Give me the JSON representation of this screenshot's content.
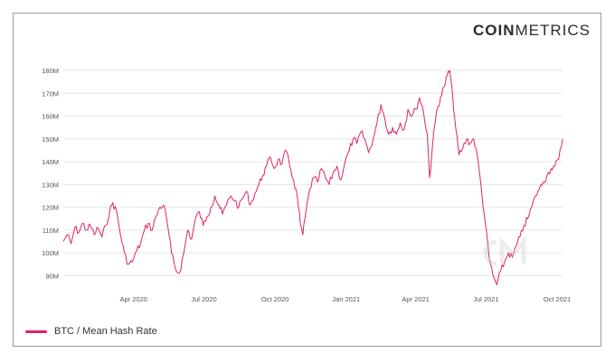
{
  "logo": {
    "bold": "COIN",
    "light": "METRICS"
  },
  "colors": {
    "series": "#e0245e",
    "grid": "#e6e6e6",
    "axis_text": "#555555"
  },
  "chart_data": {
    "type": "line",
    "title": "",
    "xlabel": "",
    "ylabel": "",
    "x_range": [
      "2020-01-01",
      "2021-10-08"
    ],
    "ylim": [
      85000000,
      182000000
    ],
    "grid": "horizontal",
    "legend_position": "bottom-left",
    "y_ticks": [
      {
        "value": 90000000,
        "label": "90M"
      },
      {
        "value": 100000000,
        "label": "100M"
      },
      {
        "value": 110000000,
        "label": "110M"
      },
      {
        "value": 120000000,
        "label": "120M"
      },
      {
        "value": 130000000,
        "label": "130M"
      },
      {
        "value": 140000000,
        "label": "140M"
      },
      {
        "value": 150000000,
        "label": "150M"
      },
      {
        "value": 160000000,
        "label": "160M"
      },
      {
        "value": 170000000,
        "label": "170M"
      },
      {
        "value": 180000000,
        "label": "180M"
      }
    ],
    "x_ticks": [
      {
        "date": "2020-04-01",
        "label": "Apr 2020"
      },
      {
        "date": "2020-07-01",
        "label": "Jul 2020"
      },
      {
        "date": "2020-10-01",
        "label": "Oct 2020"
      },
      {
        "date": "2021-01-01",
        "label": "Jan 2021"
      },
      {
        "date": "2021-04-01",
        "label": "Apr 2021"
      },
      {
        "date": "2021-07-01",
        "label": "Jul 2021"
      },
      {
        "date": "2021-10-01",
        "label": "Oct 2021"
      }
    ],
    "series": [
      {
        "name": "BTC / Mean Hash Rate",
        "points": [
          [
            "2020-01-01",
            105
          ],
          [
            "2020-01-06",
            108
          ],
          [
            "2020-01-11",
            104
          ],
          [
            "2020-01-16",
            111
          ],
          [
            "2020-01-21",
            109
          ],
          [
            "2020-01-26",
            113
          ],
          [
            "2020-01-31",
            110
          ],
          [
            "2020-02-05",
            112
          ],
          [
            "2020-02-10",
            108
          ],
          [
            "2020-02-15",
            111
          ],
          [
            "2020-02-20",
            107
          ],
          [
            "2020-02-25",
            112
          ],
          [
            "2020-03-01",
            118
          ],
          [
            "2020-03-05",
            122
          ],
          [
            "2020-03-10",
            118
          ],
          [
            "2020-03-15",
            108
          ],
          [
            "2020-03-20",
            100
          ],
          [
            "2020-03-25",
            95
          ],
          [
            "2020-03-30",
            96
          ],
          [
            "2020-04-05",
            101
          ],
          [
            "2020-04-10",
            104
          ],
          [
            "2020-04-15",
            110
          ],
          [
            "2020-04-20",
            113
          ],
          [
            "2020-04-25",
            110
          ],
          [
            "2020-04-30",
            116
          ],
          [
            "2020-05-05",
            120
          ],
          [
            "2020-05-10",
            121
          ],
          [
            "2020-05-15",
            112
          ],
          [
            "2020-05-20",
            100
          ],
          [
            "2020-05-25",
            93
          ],
          [
            "2020-05-30",
            91
          ],
          [
            "2020-06-05",
            100
          ],
          [
            "2020-06-10",
            110
          ],
          [
            "2020-06-15",
            106
          ],
          [
            "2020-06-20",
            115
          ],
          [
            "2020-06-25",
            118
          ],
          [
            "2020-06-30",
            112
          ],
          [
            "2020-07-05",
            116
          ],
          [
            "2020-07-10",
            120
          ],
          [
            "2020-07-15",
            125
          ],
          [
            "2020-07-20",
            121
          ],
          [
            "2020-07-25",
            117
          ],
          [
            "2020-07-30",
            121
          ],
          [
            "2020-08-05",
            125
          ],
          [
            "2020-08-10",
            123
          ],
          [
            "2020-08-15",
            120
          ],
          [
            "2020-08-20",
            124
          ],
          [
            "2020-08-25",
            127
          ],
          [
            "2020-08-30",
            121
          ],
          [
            "2020-09-05",
            126
          ],
          [
            "2020-09-10",
            130
          ],
          [
            "2020-09-15",
            134
          ],
          [
            "2020-09-20",
            138
          ],
          [
            "2020-09-25",
            142
          ],
          [
            "2020-09-30",
            137
          ],
          [
            "2020-10-05",
            141
          ],
          [
            "2020-10-10",
            139
          ],
          [
            "2020-10-15",
            145
          ],
          [
            "2020-10-20",
            138
          ],
          [
            "2020-10-25",
            132
          ],
          [
            "2020-10-30",
            124
          ],
          [
            "2020-11-03",
            112
          ],
          [
            "2020-11-06",
            108
          ],
          [
            "2020-11-10",
            118
          ],
          [
            "2020-11-15",
            128
          ],
          [
            "2020-11-20",
            133
          ],
          [
            "2020-11-25",
            131
          ],
          [
            "2020-11-30",
            137
          ],
          [
            "2020-12-05",
            133
          ],
          [
            "2020-12-10",
            130
          ],
          [
            "2020-12-15",
            135
          ],
          [
            "2020-12-20",
            138
          ],
          [
            "2020-12-25",
            132
          ],
          [
            "2020-12-30",
            139
          ],
          [
            "2021-01-05",
            145
          ],
          [
            "2021-01-10",
            150
          ],
          [
            "2021-01-15",
            148
          ],
          [
            "2021-01-20",
            153
          ],
          [
            "2021-01-25",
            150
          ],
          [
            "2021-01-30",
            144
          ],
          [
            "2021-02-05",
            150
          ],
          [
            "2021-02-10",
            157
          ],
          [
            "2021-02-15",
            165
          ],
          [
            "2021-02-20",
            159
          ],
          [
            "2021-02-25",
            152
          ],
          [
            "2021-03-02",
            155
          ],
          [
            "2021-03-07",
            152
          ],
          [
            "2021-03-12",
            157
          ],
          [
            "2021-03-17",
            154
          ],
          [
            "2021-03-22",
            163
          ],
          [
            "2021-03-27",
            160
          ],
          [
            "2021-04-01",
            163
          ],
          [
            "2021-04-06",
            168
          ],
          [
            "2021-04-11",
            162
          ],
          [
            "2021-04-16",
            152
          ],
          [
            "2021-04-19",
            133
          ],
          [
            "2021-04-23",
            148
          ],
          [
            "2021-04-28",
            162
          ],
          [
            "2021-05-03",
            168
          ],
          [
            "2021-05-08",
            173
          ],
          [
            "2021-05-12",
            178
          ],
          [
            "2021-05-15",
            180
          ],
          [
            "2021-05-19",
            168
          ],
          [
            "2021-05-23",
            154
          ],
          [
            "2021-05-27",
            143
          ],
          [
            "2021-06-01",
            146
          ],
          [
            "2021-06-06",
            150
          ],
          [
            "2021-06-10",
            148
          ],
          [
            "2021-06-15",
            150
          ],
          [
            "2021-06-20",
            142
          ],
          [
            "2021-06-25",
            128
          ],
          [
            "2021-06-30",
            113
          ],
          [
            "2021-07-05",
            98
          ],
          [
            "2021-07-10",
            90
          ],
          [
            "2021-07-15",
            86
          ],
          [
            "2021-07-20",
            92
          ],
          [
            "2021-07-25",
            96
          ],
          [
            "2021-07-30",
            100
          ],
          [
            "2021-08-04",
            98
          ],
          [
            "2021-08-09",
            103
          ],
          [
            "2021-08-14",
            107
          ],
          [
            "2021-08-19",
            112
          ],
          [
            "2021-08-24",
            115
          ],
          [
            "2021-08-29",
            120
          ],
          [
            "2021-09-03",
            125
          ],
          [
            "2021-09-08",
            128
          ],
          [
            "2021-09-13",
            131
          ],
          [
            "2021-09-18",
            134
          ],
          [
            "2021-09-23",
            137
          ],
          [
            "2021-09-28",
            138
          ],
          [
            "2021-10-03",
            141
          ],
          [
            "2021-10-08",
            150
          ]
        ]
      }
    ]
  },
  "watermark": {
    "icon": "coinmetrics-cm-watermark"
  }
}
